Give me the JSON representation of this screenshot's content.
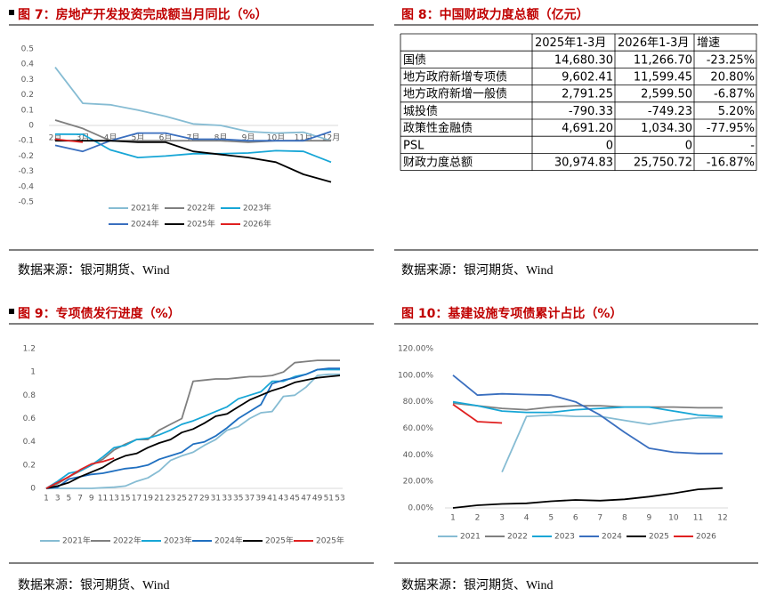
{
  "chart_data": [
    {
      "type": "line",
      "title": "图 7：房地产开发投资完成额当月同比（%）",
      "categories": [
        "2月",
        "3月",
        "4月",
        "5月",
        "6月",
        "7月",
        "8月",
        "9月",
        "10月",
        "11月",
        "12月"
      ],
      "ylim": [
        -0.5,
        0.5
      ],
      "yticks": [
        0.5,
        0.4,
        0.3,
        0.2,
        0.1,
        0,
        -0.1,
        -0.2,
        -0.3,
        -0.4,
        -0.5
      ],
      "grid": false,
      "series": [
        {
          "name": "2021年",
          "color": "#86bcd3",
          "values": [
            0.38,
            0.145,
            0.135,
            0.1,
            0.06,
            0.01,
            0.0,
            -0.04,
            -0.05,
            -0.045,
            -0.1
          ]
        },
        {
          "name": "2022年",
          "color": "#7f7f7f",
          "values": [
            0.035,
            -0.02,
            -0.1,
            -0.1,
            -0.1,
            -0.1,
            -0.1,
            -0.11,
            -0.1,
            -0.1,
            -0.1
          ]
        },
        {
          "name": "2023年",
          "color": "#17a6d6",
          "values": [
            -0.057,
            -0.058,
            -0.16,
            -0.21,
            -0.2,
            -0.185,
            -0.185,
            -0.18,
            -0.165,
            -0.17,
            -0.24
          ]
        },
        {
          "name": "2024年",
          "color": "#3a6fbf",
          "values": [
            -0.13,
            -0.17,
            -0.1,
            -0.05,
            -0.05,
            -0.09,
            -0.09,
            -0.1,
            -0.1,
            -0.1,
            -0.04
          ]
        },
        {
          "name": "2025年",
          "color": "#000000",
          "values": [
            -0.1,
            -0.1,
            -0.1,
            -0.11,
            -0.11,
            -0.17,
            -0.19,
            -0.21,
            -0.24,
            -0.32,
            -0.37
          ]
        },
        {
          "name": "2026年",
          "color": "#e02020",
          "values": [
            -0.09,
            -0.11,
            null,
            null,
            null,
            null,
            null,
            null,
            null,
            null,
            null
          ]
        }
      ]
    },
    {
      "type": "line",
      "title": "图 9：专项债发行进度（%）",
      "x": [
        1,
        3,
        5,
        7,
        9,
        11,
        13,
        15,
        17,
        19,
        21,
        23,
        25,
        27,
        29,
        31,
        33,
        35,
        37,
        39,
        41,
        43,
        45,
        47,
        49,
        51,
        53
      ],
      "xlim": [
        1,
        53
      ],
      "xticks": [
        1,
        3,
        5,
        7,
        9,
        11,
        13,
        15,
        17,
        19,
        21,
        23,
        25,
        27,
        29,
        31,
        33,
        35,
        37,
        39,
        41,
        43,
        45,
        47,
        49,
        51,
        53
      ],
      "ylim": [
        0,
        1.2
      ],
      "yticks": [
        0,
        0.2,
        0.4,
        0.6,
        0.8,
        1,
        1.2
      ],
      "grid": false,
      "series": [
        {
          "name": "2021年",
          "color": "#86bcd3",
          "values": [
            0,
            0,
            0,
            0,
            0,
            0.005,
            0.01,
            0.02,
            0.06,
            0.09,
            0.15,
            0.24,
            0.28,
            0.31,
            0.37,
            0.42,
            0.5,
            0.53,
            0.6,
            0.65,
            0.66,
            0.79,
            0.8,
            0.87,
            0.97,
            0.98,
            0.98
          ]
        },
        {
          "name": "2022年",
          "color": "#7f7f7f",
          "values": [
            0,
            0.04,
            0.1,
            0.15,
            0.2,
            0.25,
            0.33,
            0.38,
            0.42,
            0.42,
            0.5,
            0.55,
            0.6,
            0.92,
            0.93,
            0.94,
            0.94,
            0.95,
            0.96,
            0.96,
            0.97,
            1.0,
            1.08,
            1.09,
            1.1,
            1.1,
            1.1
          ]
        },
        {
          "name": "2023年",
          "color": "#17a6d6",
          "values": [
            0,
            0.06,
            0.13,
            0.15,
            0.2,
            0.27,
            0.35,
            0.37,
            0.42,
            0.43,
            0.46,
            0.5,
            0.55,
            0.58,
            0.62,
            0.66,
            0.7,
            0.77,
            0.8,
            0.83,
            0.92,
            0.92,
            0.96,
            0.98,
            1.02,
            1.02,
            1.02
          ]
        },
        {
          "name": "2024年",
          "color": "#1f6fc0",
          "values": [
            0,
            0.01,
            0.08,
            0.1,
            0.12,
            0.13,
            0.15,
            0.17,
            0.18,
            0.2,
            0.25,
            0.28,
            0.31,
            0.38,
            0.4,
            0.45,
            0.52,
            0.6,
            0.66,
            0.72,
            0.9,
            0.93,
            0.95,
            0.98,
            1.02,
            1.03,
            1.03
          ]
        },
        {
          "name": "2025年",
          "color": "#000000",
          "values": [
            0,
            0.02,
            0.05,
            0.1,
            0.14,
            0.18,
            0.24,
            0.28,
            0.3,
            0.35,
            0.39,
            0.42,
            0.48,
            0.51,
            0.56,
            0.62,
            0.64,
            0.7,
            0.76,
            0.8,
            0.84,
            0.87,
            0.91,
            0.93,
            0.95,
            0.96,
            0.97
          ]
        },
        {
          "name": "2025年",
          "color": "#e02020",
          "values": [
            0,
            0.05,
            0.1,
            0.16,
            0.21,
            0.23,
            0.26,
            null,
            null,
            null,
            null,
            null,
            null,
            null,
            null,
            null,
            null,
            null,
            null,
            null,
            null,
            null,
            null,
            null,
            null,
            null,
            null
          ]
        }
      ]
    },
    {
      "type": "line",
      "title": "图 10：基建设施专项债累计占比（%）",
      "categories": [
        "1",
        "2",
        "3",
        "4",
        "5",
        "6",
        "7",
        "8",
        "9",
        "10",
        "11",
        "12"
      ],
      "ylim": [
        0,
        120
      ],
      "yticks": [
        {
          "value": 0,
          "label": "0.00%"
        },
        {
          "value": 20,
          "label": "20.00%"
        },
        {
          "value": 40,
          "label": "40.00%"
        },
        {
          "value": 60,
          "label": "60.00%"
        },
        {
          "value": 80,
          "label": "80.00%"
        },
        {
          "value": 100,
          "label": "100.00%"
        },
        {
          "value": 120,
          "label": "120.00%"
        }
      ],
      "grid": false,
      "series": [
        {
          "name": "2021",
          "color": "#86bcd3",
          "values": [
            null,
            null,
            27,
            69,
            70,
            69,
            69,
            66,
            63,
            66,
            68,
            68
          ]
        },
        {
          "name": "2022",
          "color": "#7f7f7f",
          "values": [
            79,
            77,
            75,
            74,
            76,
            77,
            77,
            76,
            76,
            76,
            75.5,
            75.5
          ]
        },
        {
          "name": "2023",
          "color": "#17a6d6",
          "values": [
            80,
            77,
            73,
            72,
            72,
            74,
            75,
            76,
            76,
            73,
            70,
            69
          ]
        },
        {
          "name": "2024",
          "color": "#3a6fbf",
          "values": [
            100,
            85,
            86,
            85.5,
            85,
            80,
            70,
            57,
            45,
            42,
            41,
            41
          ]
        },
        {
          "name": "2025",
          "color": "#000000",
          "values": [
            0,
            2,
            3,
            3.5,
            5,
            6,
            5.5,
            6.5,
            8.5,
            11,
            14,
            15
          ]
        },
        {
          "name": "2026",
          "color": "#e02020",
          "values": [
            78,
            65,
            64,
            null,
            null,
            null,
            null,
            null,
            null,
            null,
            null,
            null
          ]
        }
      ]
    }
  ],
  "table": {
    "title": "图 8：中国财政力度总额（亿元）",
    "header": [
      "2025年1-3月",
      "2026年1-3月",
      "增速"
    ],
    "rows": [
      [
        "国债",
        "14,680.30",
        "11,266.70",
        "-23.25%"
      ],
      [
        "地方政府新增专项债",
        "9,602.41",
        "11,599.45",
        "20.80%"
      ],
      [
        "地方政府新增一般债",
        "2,791.25",
        "2,599.50",
        "-6.87%"
      ],
      [
        "城投债",
        "-790.33",
        "-749.23",
        "5.20%"
      ],
      [
        "政策性金融债",
        "4,691.20",
        "1,034.30",
        "-77.95%"
      ],
      [
        "PSL",
        "0",
        "0",
        "-"
      ],
      [
        "财政力度总额",
        "30,974.83",
        "25,750.72",
        "-16.87%"
      ]
    ]
  },
  "sources": [
    "数据来源：银河期货、Wind",
    "数据来源：银河期货、Wind",
    "数据来源：银河期货、Wind",
    "数据来源：银河期货、Wind"
  ]
}
